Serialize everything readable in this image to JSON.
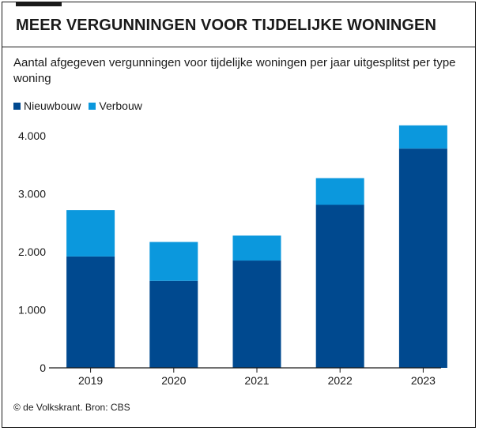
{
  "title": "MEER VERGUNNINGEN VOOR TIJDELIJKE WONINGEN",
  "subtitle": "Aantal afgegeven vergunningen voor tijdelijke woningen per jaar uitgesplitst per type woning",
  "source": "© de Volkskrant. Bron: CBS",
  "colors": {
    "nieuwbouw": "#00498f",
    "verbouw": "#0b98dd",
    "axis": "#1a1a1a",
    "text": "#1a1a1a"
  },
  "chart_data": {
    "type": "bar",
    "stacked": true,
    "categories": [
      "2019",
      "2020",
      "2021",
      "2022",
      "2023"
    ],
    "series": [
      {
        "name": "Nieuwbouw",
        "values": [
          1920,
          1500,
          1850,
          2810,
          3780
        ],
        "color": "#00498f"
      },
      {
        "name": "Verbouw",
        "values": [
          800,
          670,
          430,
          460,
          400
        ],
        "color": "#0b98dd"
      }
    ],
    "yticks": [
      0,
      1000,
      2000,
      3000,
      4000
    ],
    "ytick_labels": [
      "0",
      "1.000",
      "2.000",
      "3.000",
      "4.000"
    ],
    "ylim": [
      0,
      4300
    ],
    "legend_position": "top-left",
    "grid": false
  }
}
